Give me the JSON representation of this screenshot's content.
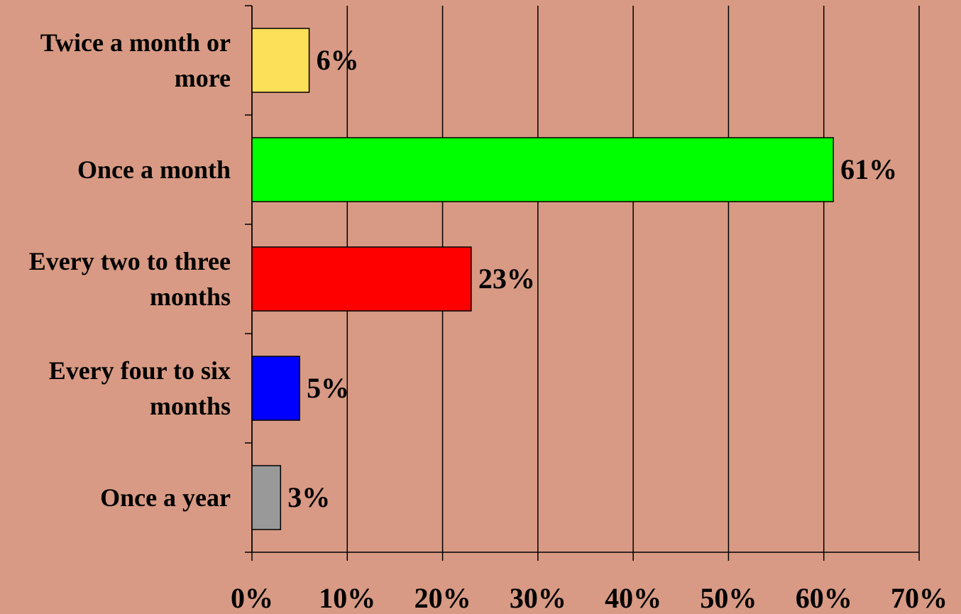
{
  "chart_data": {
    "type": "bar",
    "categories": [
      "Twice a month or more",
      "Once a month",
      "Every two to three months",
      "Every four to six months",
      "Once a year"
    ],
    "values": [
      6,
      61,
      23,
      5,
      3
    ],
    "value_labels": [
      "6%",
      "61%",
      "23%",
      "5%",
      "3%"
    ],
    "colors": [
      "#fce05a",
      "#00ff00",
      "#ff0000",
      "#0000ff",
      "#999999"
    ],
    "xlim": [
      0,
      70
    ],
    "xticks": [
      {
        "value": 0,
        "label": "0%"
      },
      {
        "value": 10,
        "label": "10%"
      },
      {
        "value": 20,
        "label": "20%"
      },
      {
        "value": 30,
        "label": "30%"
      },
      {
        "value": 40,
        "label": "40%"
      },
      {
        "value": 50,
        "label": "50%"
      },
      {
        "value": 60,
        "label": "60%"
      },
      {
        "value": 70,
        "label": "70%"
      }
    ],
    "grid": true
  }
}
